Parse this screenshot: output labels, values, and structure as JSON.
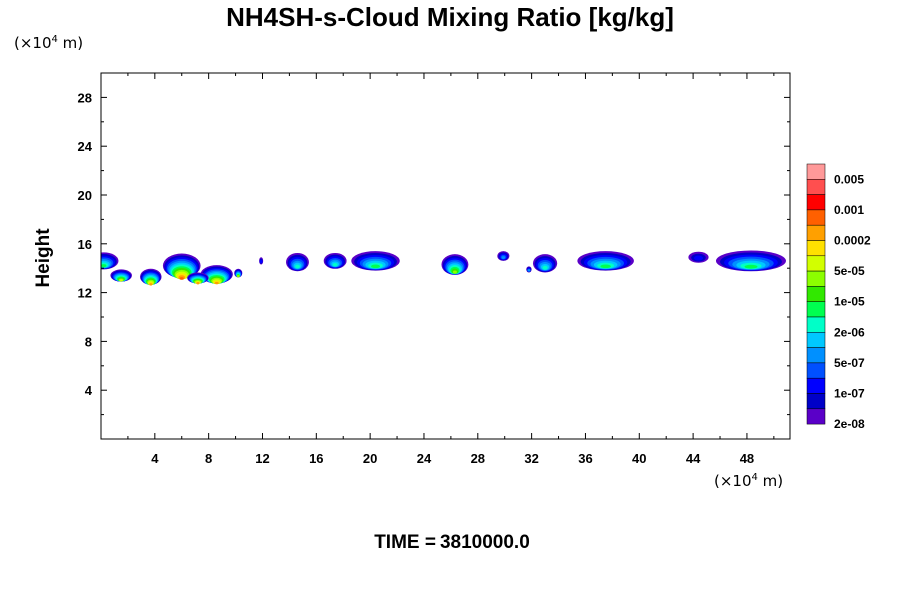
{
  "chart_data": {
    "type": "contour",
    "title": "NH4SH-s-Cloud Mixing Ratio [kg/kg]",
    "ylabel": "Height",
    "xlabel": "",
    "x_unit": {
      "prefix": "(×10",
      "exp": "4",
      "suffix": " m)"
    },
    "y_unit": {
      "prefix": "(×10",
      "exp": "4",
      "suffix": " m)"
    },
    "xlim": [
      0,
      51.2
    ],
    "ylim": [
      0,
      30
    ],
    "x_ticks": [
      4,
      8,
      12,
      16,
      20,
      24,
      28,
      32,
      36,
      40,
      44,
      48
    ],
    "y_ticks": [
      4,
      8,
      12,
      16,
      20,
      24,
      28
    ],
    "colorbar": {
      "colors": [
        "#ff9999",
        "#ff4f4f",
        "#ff0000",
        "#ff6000",
        "#ffa000",
        "#ffe100",
        "#d2ff00",
        "#8cff00",
        "#31e800",
        "#00ff50",
        "#00ffc8",
        "#00c8ff",
        "#0090ff",
        "#0050ff",
        "#0000ff",
        "#0000c8",
        "#5a00c8"
      ],
      "labels": [
        "0.005",
        "0.001",
        "0.0002",
        "5e-05",
        "1e-05",
        "2e-06",
        "5e-07",
        "1e-07",
        "2e-08"
      ]
    },
    "cloud_cells": [
      {
        "x": 0.2,
        "y": 14.6,
        "w": 2.2,
        "h": 1.4,
        "peak": 9
      },
      {
        "x": 1.5,
        "y": 13.4,
        "w": 1.6,
        "h": 1.0,
        "peak": 6
      },
      {
        "x": 3.7,
        "y": 13.3,
        "w": 1.6,
        "h": 1.3,
        "peak": 4
      },
      {
        "x": 6.0,
        "y": 14.2,
        "w": 2.8,
        "h": 2.0,
        "peak": 3
      },
      {
        "x": 8.6,
        "y": 13.5,
        "w": 2.4,
        "h": 1.5,
        "peak": 4
      },
      {
        "x": 7.2,
        "y": 13.2,
        "w": 1.6,
        "h": 0.9,
        "peak": 4
      },
      {
        "x": 10.2,
        "y": 13.6,
        "w": 0.6,
        "h": 0.7,
        "peak": 7
      },
      {
        "x": 11.9,
        "y": 14.6,
        "w": 0.3,
        "h": 0.6,
        "peak": 14
      },
      {
        "x": 14.6,
        "y": 14.5,
        "w": 1.7,
        "h": 1.5,
        "peak": 10
      },
      {
        "x": 17.4,
        "y": 14.6,
        "w": 1.7,
        "h": 1.3,
        "peak": 10
      },
      {
        "x": 20.4,
        "y": 14.6,
        "w": 3.6,
        "h": 1.6,
        "peak": 9
      },
      {
        "x": 26.3,
        "y": 14.3,
        "w": 2.0,
        "h": 1.7,
        "peak": 7
      },
      {
        "x": 29.9,
        "y": 15.0,
        "w": 0.9,
        "h": 0.8,
        "peak": 12
      },
      {
        "x": 31.8,
        "y": 13.9,
        "w": 0.4,
        "h": 0.5,
        "peak": 12
      },
      {
        "x": 33.0,
        "y": 14.4,
        "w": 1.8,
        "h": 1.5,
        "peak": 10
      },
      {
        "x": 37.5,
        "y": 14.6,
        "w": 4.2,
        "h": 1.6,
        "peak": 9
      },
      {
        "x": 44.4,
        "y": 14.9,
        "w": 1.5,
        "h": 0.9,
        "peak": 14
      },
      {
        "x": 48.3,
        "y": 14.6,
        "w": 5.2,
        "h": 1.7,
        "peak": 9
      }
    ]
  },
  "footer": {
    "time_label": "TIME =",
    "time_value": "3810000.0"
  }
}
